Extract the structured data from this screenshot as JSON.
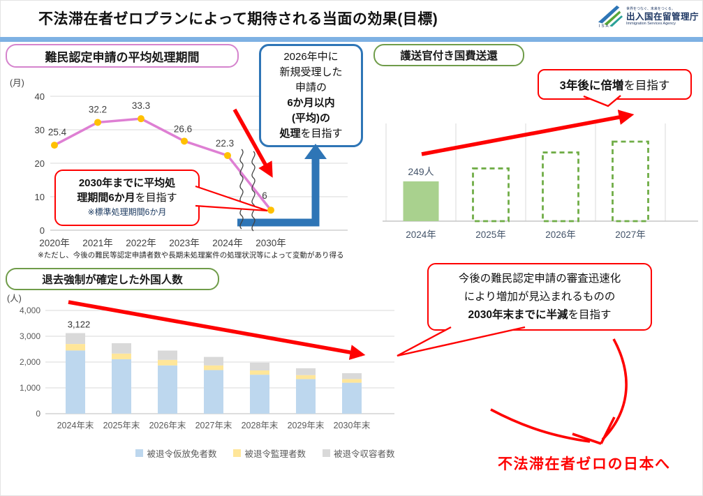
{
  "page": {
    "title": "不法滞在者ゼロプランによって期待される当面の効果(目標)"
  },
  "logo": {
    "tagline": "世界をつなぐ、未来をつくる。",
    "agency_ja": "出入国在留管理庁",
    "agency_en": "Immigration Services Agency",
    "initials": "I S A"
  },
  "colors": {
    "red_accent": "#fe0000",
    "blue_accent": "#2e75b6",
    "accent_bar": "#7eb1e3",
    "pink_header_border": "#d583cd",
    "green_header_border": "#6f9c49"
  },
  "annotations": {
    "processing_goal_box": {
      "line1": "2026年中に",
      "line2": "新規受理した",
      "line3": "申請の",
      "line4_bold": "6か月以内",
      "line5_bold": "(平均)の",
      "line6_bold": "処理",
      "line6_rest": "を目指す"
    },
    "processing_target_callout": {
      "line1_bold": "2030年までに平均処",
      "line2_bold": "理期間6か月",
      "line2_rest": "を目指す",
      "note": "※標準処理期間6か月"
    },
    "escort_double_callout": {
      "bold": "3年後に倍増",
      "rest": "を目指す"
    },
    "deportation_halve_callout": {
      "line1": "今後の難民認定申請の審査迅速化",
      "line2": "により増加が見込まれるものの",
      "line3_bold": "2030年末までに半減",
      "line3_rest": "を目指す"
    },
    "final_goal": "不法滞在者ゼロの日本へ"
  },
  "chart_data": [
    {
      "type": "line",
      "title": "難民認定申請の平均処理期間",
      "unit": "(月)",
      "categories": [
        "2020年",
        "2021年",
        "2022年",
        "2023年",
        "2024年",
        "2030年"
      ],
      "values": [
        25.4,
        32.2,
        33.3,
        26.6,
        22.3,
        6
      ],
      "y_ticks": [
        0,
        10,
        20,
        30,
        40
      ],
      "ylim": [
        0,
        40
      ],
      "axis_break_between": [
        "2024年",
        "2030年"
      ],
      "line_color": "#de7fd3",
      "marker_color": "#ffc000",
      "footnote": "※ただし、今後の難民等認定申請者数や長期未処理案件の処理状況等によって変動があり得る"
    },
    {
      "type": "bar",
      "title": "護送官付き国費送還",
      "categories": [
        "2024年",
        "2025年",
        "2026年",
        "2027年"
      ],
      "values": [
        249,
        330,
        430,
        498
      ],
      "value_labels": [
        "249人",
        "",
        "",
        ""
      ],
      "bar_styles": [
        "solid",
        "dashed",
        "dashed",
        "dashed"
      ],
      "bar_fill": "#a9d18e",
      "dashed_border": "#70ad47",
      "target_values_estimated": true,
      "ylim": [
        0,
        520
      ]
    },
    {
      "type": "stacked_bar",
      "title": "退去強制が確定した外国人数",
      "unit": "(人)",
      "categories": [
        "2024年末",
        "2025年末",
        "2026年末",
        "2027年末",
        "2028年末",
        "2029年末",
        "2030年末"
      ],
      "series": [
        {
          "name": "被退令仮放免者数",
          "color": "#bdd7ee",
          "values": [
            2450,
            2110,
            1870,
            1690,
            1510,
            1340,
            1200
          ]
        },
        {
          "name": "被退令監理者数",
          "color": "#ffe699",
          "values": [
            250,
            220,
            215,
            180,
            165,
            155,
            140
          ]
        },
        {
          "name": "被退令収容者数",
          "color": "#d9d9d9",
          "values": [
            422,
            400,
            360,
            330,
            300,
            265,
            230
          ]
        }
      ],
      "totals_estimated": [
        3122,
        2730,
        2445,
        2200,
        1975,
        1760,
        1570
      ],
      "data_label": "3,122",
      "y_ticks": [
        0,
        1000,
        2000,
        3000,
        4000
      ],
      "y_tick_labels": [
        "0",
        "1,000",
        "2,000",
        "3,000",
        "4,000"
      ],
      "ylim": [
        0,
        4000
      ],
      "legend_position": "bottom"
    }
  ]
}
